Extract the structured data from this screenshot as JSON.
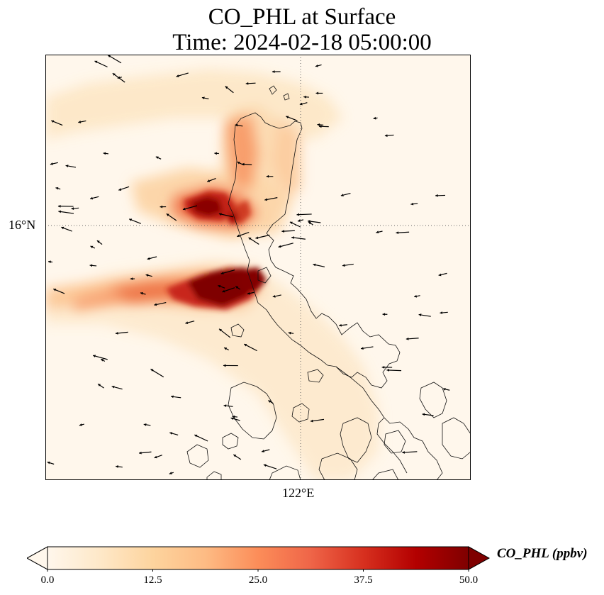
{
  "title": {
    "line1": "CO_PHL at Surface",
    "line2": "Time: 2024-02-18 05:00:00"
  },
  "map": {
    "lat_label": "16°N",
    "lon_label": "122°E",
    "gridline_style": "dotted",
    "colormap": "OrRd"
  },
  "colorbar": {
    "label": "CO_PHL (ppbv)",
    "min": 0.0,
    "max": 50.0,
    "extend": "both",
    "ticks": [
      "0.0",
      "12.5",
      "25.0",
      "37.5",
      "50.0"
    ],
    "colors": [
      "#fff7ec",
      "#fee8c8",
      "#fdd49e",
      "#fdbb84",
      "#fc8d59",
      "#ef6548",
      "#d7301f",
      "#b30000",
      "#7f0000"
    ]
  }
}
